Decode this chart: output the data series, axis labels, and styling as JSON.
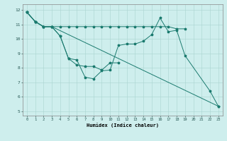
{
  "xlabel": "Humidex (Indice chaleur)",
  "xlim": [
    -0.5,
    23.5
  ],
  "ylim": [
    4.7,
    12.4
  ],
  "xticks": [
    0,
    1,
    2,
    3,
    4,
    5,
    6,
    7,
    8,
    9,
    10,
    11,
    12,
    13,
    14,
    15,
    16,
    17,
    18,
    19,
    20,
    21,
    22,
    23
  ],
  "yticks": [
    5,
    6,
    7,
    8,
    9,
    10,
    11,
    12
  ],
  "bg_color": "#ceeeed",
  "line_color": "#1a7a6e",
  "grid_color": "#aad4d0",
  "line1_x": [
    0,
    1,
    2,
    3,
    4,
    5,
    6,
    7,
    8,
    9,
    10,
    11,
    12,
    13,
    14,
    15,
    16,
    17,
    18,
    19,
    22,
    23
  ],
  "line1_y": [
    11.85,
    11.2,
    10.85,
    10.85,
    10.2,
    8.65,
    8.55,
    7.35,
    7.25,
    7.8,
    7.85,
    9.55,
    9.65,
    9.65,
    9.85,
    10.3,
    11.45,
    10.5,
    10.6,
    8.85,
    6.4,
    5.35
  ],
  "line2_x": [
    0,
    1,
    2,
    3,
    4,
    5,
    6,
    7,
    8,
    9,
    10,
    11,
    12,
    13,
    14,
    15,
    16,
    17,
    18,
    19
  ],
  "line2_y": [
    11.85,
    11.2,
    10.85,
    10.85,
    10.85,
    10.85,
    10.85,
    10.85,
    10.85,
    10.85,
    10.85,
    10.85,
    10.85,
    10.85,
    10.85,
    10.85,
    10.85,
    10.85,
    10.7,
    10.7
  ],
  "line3_x": [
    0,
    1,
    2,
    3,
    4,
    5,
    6,
    7,
    8,
    9,
    10,
    11
  ],
  "line3_y": [
    11.85,
    11.2,
    10.85,
    10.85,
    10.2,
    8.65,
    8.2,
    8.1,
    8.1,
    7.85,
    8.35,
    8.35
  ],
  "line4_x": [
    0,
    1,
    2,
    3,
    23
  ],
  "line4_y": [
    11.85,
    11.2,
    10.85,
    10.85,
    5.35
  ]
}
